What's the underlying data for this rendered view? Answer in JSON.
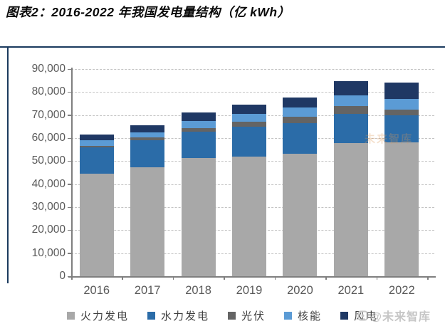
{
  "title": "图表2：2016-2022 年我国发电量结构（亿 kWh）",
  "watermark": {
    "text": "@未来智库",
    "inline_text": "未来智库"
  },
  "chart_data": {
    "type": "bar",
    "stacked": true,
    "title": "2016-2022 年我国发电量结构",
    "unit": "亿 kWh",
    "categories": [
      "2016",
      "2017",
      "2018",
      "2019",
      "2020",
      "2021",
      "2022"
    ],
    "series": [
      {
        "name": "火力发电",
        "color": "#a8a8a8",
        "values": [
          44400,
          47300,
          51300,
          51900,
          53300,
          57700,
          58200
        ]
      },
      {
        "name": "水力发电",
        "color": "#2b6ca8",
        "values": [
          11500,
          11800,
          11600,
          13000,
          13100,
          12800,
          11600
        ]
      },
      {
        "name": "光伏",
        "color": "#646464",
        "values": [
          700,
          1200,
          1500,
          2200,
          2900,
          3400,
          2600
        ]
      },
      {
        "name": "核能",
        "color": "#5b9bd5",
        "values": [
          2400,
          2300,
          3000,
          3400,
          3900,
          4800,
          4600
        ]
      },
      {
        "name": "风电",
        "color": "#1f3864",
        "values": [
          2500,
          3100,
          3600,
          4200,
          4300,
          6200,
          7100
        ]
      }
    ],
    "totals": [
      61500,
      65700,
      71000,
      74700,
      77500,
      84900,
      84100
    ],
    "ylim": [
      0,
      90000
    ],
    "ytick_interval": 10000,
    "ytick_labels": [
      "0",
      "10,000",
      "20,000",
      "30,000",
      "40,000",
      "50,000",
      "60,000",
      "70,000",
      "80,000",
      "90,000"
    ],
    "grid": "horizontal-dashed",
    "legend_position": "bottom",
    "accent_border_color": "#1b3a5e",
    "axis_color": "#7f7f7f",
    "label_color": "#595959"
  }
}
